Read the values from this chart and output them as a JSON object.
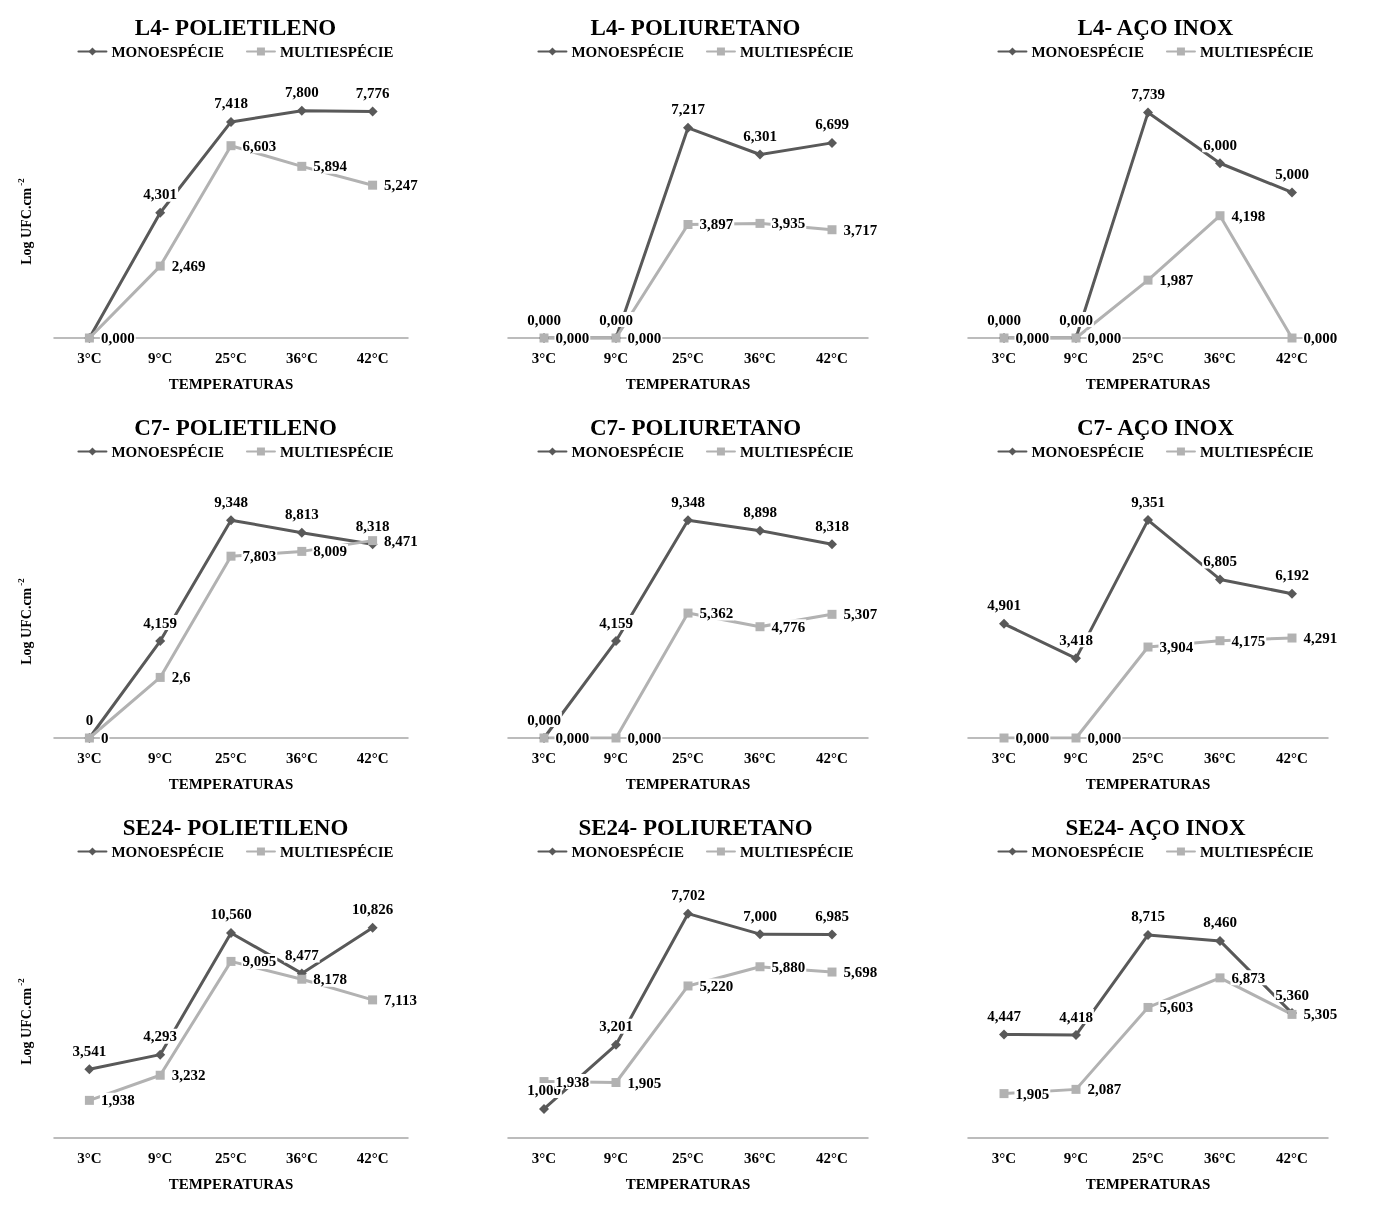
{
  "chart_data": [
    {
      "type": "line",
      "title": "L4- POLIETILENO",
      "xlabel": "TEMPERATURAS",
      "ylabel": "Log UFC.cm$^{-2}$",
      "categories": [
        "3°C",
        "9°C",
        "25°C",
        "36°C",
        "42°C"
      ],
      "legend": "top",
      "grid": false,
      "series": [
        {
          "name": "MONOESPÉCIE",
          "color": "#595959",
          "marker": "diamond",
          "values": [
            0,
            4.301,
            7.418,
            7.8,
            7.776
          ],
          "value_labels": [
            null,
            "4,301",
            "7,418",
            "7,800",
            "7,776"
          ]
        },
        {
          "name": "MULTIESPÉCIE",
          "color": "#b2b2b2",
          "marker": "square",
          "values": [
            0,
            2.469,
            6.603,
            5.894,
            5.247
          ],
          "value_labels": [
            "0,000",
            "2,469",
            "6,603",
            "5,894",
            "5,247"
          ]
        }
      ]
    },
    {
      "type": "line",
      "title": "L4- POLIURETANO",
      "xlabel": "TEMPERATURAS",
      "categories": [
        "3°C",
        "9°C",
        "25°C",
        "36°C",
        "42°C"
      ],
      "legend": "top",
      "grid": false,
      "series": [
        {
          "name": "MONOESPÉCIE",
          "color": "#595959",
          "marker": "diamond",
          "values": [
            0,
            0,
            7.217,
            6.301,
            6.699
          ],
          "value_labels": [
            "0,000",
            "0,000",
            "7,217",
            "6,301",
            "6,699"
          ]
        },
        {
          "name": "MULTIESPÉCIE",
          "color": "#b2b2b2",
          "marker": "square",
          "values": [
            0,
            0,
            3.897,
            3.935,
            3.717
          ],
          "value_labels": [
            "0,000",
            "0,000",
            "3,897",
            "3,935",
            "3,717"
          ]
        }
      ]
    },
    {
      "type": "line",
      "title": "L4- AÇO INOX",
      "xlabel": "TEMPERATURAS",
      "categories": [
        "3°C",
        "9°C",
        "25°C",
        "36°C",
        "42°C"
      ],
      "legend": "top",
      "grid": false,
      "series": [
        {
          "name": "MONOESPÉCIE",
          "color": "#595959",
          "marker": "diamond",
          "values": [
            0,
            0,
            7.739,
            6.0,
            5.0
          ],
          "value_labels": [
            "0,000",
            "0,000",
            "7,739",
            "6,000",
            "5,000"
          ]
        },
        {
          "name": "MULTIESPÉCIE",
          "color": "#b2b2b2",
          "marker": "square",
          "values": [
            0,
            0,
            1.987,
            4.198,
            0
          ],
          "value_labels": [
            "0,000",
            "0,000",
            "1,987",
            "4,198",
            "0,000"
          ]
        }
      ]
    },
    {
      "type": "line",
      "title": "C7- POLIETILENO",
      "xlabel": "TEMPERATURAS",
      "ylabel": "Log UFC.cm$^{-2}$",
      "categories": [
        "3°C",
        "9°C",
        "25°C",
        "36°C",
        "42°C"
      ],
      "legend": "top",
      "grid": false,
      "series": [
        {
          "name": "MONOESPÉCIE",
          "color": "#595959",
          "marker": "diamond",
          "values": [
            0,
            4.159,
            9.348,
            8.813,
            8.318
          ],
          "value_labels": [
            "0",
            "4,159",
            "9,348",
            "8,813",
            "8,318"
          ]
        },
        {
          "name": "MULTIESPÉCIE",
          "color": "#b2b2b2",
          "marker": "square",
          "values": [
            0,
            2.6,
            7.803,
            8.009,
            8.471
          ],
          "value_labels": [
            "0",
            "2,6",
            "7,803",
            "8,009",
            "8,471"
          ]
        }
      ]
    },
    {
      "type": "line",
      "title": "C7- POLIURETANO",
      "xlabel": "TEMPERATURAS",
      "categories": [
        "3°C",
        "9°C",
        "25°C",
        "36°C",
        "42°C"
      ],
      "legend": "top",
      "grid": false,
      "series": [
        {
          "name": "MONOESPÉCIE",
          "color": "#595959",
          "marker": "diamond",
          "values": [
            0,
            4.159,
            9.348,
            8.898,
            8.318
          ],
          "value_labels": [
            "0,000",
            "4,159",
            "9,348",
            "8,898",
            "8,318"
          ]
        },
        {
          "name": "MULTIESPÉCIE",
          "color": "#b2b2b2",
          "marker": "square",
          "values": [
            0,
            0,
            5.362,
            4.776,
            5.307
          ],
          "value_labels": [
            "0,000",
            "0,000",
            "5,362",
            "4,776",
            "5,307"
          ]
        }
      ]
    },
    {
      "type": "line",
      "title": "C7- AÇO INOX",
      "xlabel": "TEMPERATURAS",
      "categories": [
        "3°C",
        "9°C",
        "25°C",
        "36°C",
        "42°C"
      ],
      "legend": "top",
      "grid": false,
      "series": [
        {
          "name": "MONOESPÉCIE",
          "color": "#595959",
          "marker": "diamond",
          "values": [
            4.901,
            3.418,
            9.351,
            6.805,
            6.192
          ],
          "value_labels": [
            "4,901",
            "3,418",
            "9,351",
            "6,805",
            "6,192"
          ]
        },
        {
          "name": "MULTIESPÉCIE",
          "color": "#b2b2b2",
          "marker": "square",
          "values": [
            0,
            0,
            3.904,
            4.175,
            4.291
          ],
          "value_labels": [
            "0,000",
            "0,000",
            "3,904",
            "4,175",
            "4,291"
          ]
        }
      ]
    },
    {
      "type": "line",
      "title": "SE24- POLIETILENO",
      "xlabel": "TEMPERATURAS",
      "ylabel": "Log UFC.cm$^{-2}$",
      "categories": [
        "3°C",
        "9°C",
        "25°C",
        "36°C",
        "42°C"
      ],
      "legend": "top",
      "grid": false,
      "series": [
        {
          "name": "MONOESPÉCIE",
          "color": "#595959",
          "marker": "diamond",
          "values": [
            3.541,
            4.293,
            10.56,
            8.477,
            10.826
          ],
          "value_labels": [
            "3,541",
            "4,293",
            "10,560",
            "8,477",
            "10,826"
          ]
        },
        {
          "name": "MULTIESPÉCIE",
          "color": "#b2b2b2",
          "marker": "square",
          "values": [
            1.938,
            3.232,
            9.095,
            8.178,
            7.113
          ],
          "value_labels": [
            "1,938",
            "3,232",
            "9,095",
            "8,178",
            "7,113"
          ]
        }
      ]
    },
    {
      "type": "line",
      "title": "SE24- POLIURETANO",
      "xlabel": "TEMPERATURAS",
      "categories": [
        "3°C",
        "9°C",
        "25°C",
        "36°C",
        "42°C"
      ],
      "legend": "top",
      "grid": false,
      "series": [
        {
          "name": "MONOESPÉCIE",
          "color": "#595959",
          "marker": "diamond",
          "values": [
            1.0,
            3.201,
            7.702,
            7.0,
            6.985
          ],
          "value_labels": [
            "1,000",
            "3,201",
            "7,702",
            "7,000",
            "6,985"
          ]
        },
        {
          "name": "MULTIESPÉCIE",
          "color": "#b2b2b2",
          "marker": "square",
          "values": [
            1.938,
            1.905,
            5.22,
            5.88,
            5.698
          ],
          "value_labels": [
            "1,938",
            "1,905",
            "5,220",
            "5,880",
            "5,698"
          ]
        }
      ]
    },
    {
      "type": "line",
      "title": "SE24- AÇO INOX",
      "xlabel": "TEMPERATURAS",
      "categories": [
        "3°C",
        "9°C",
        "25°C",
        "36°C",
        "42°C"
      ],
      "legend": "top",
      "grid": false,
      "series": [
        {
          "name": "MONOESPÉCIE",
          "color": "#595959",
          "marker": "diamond",
          "values": [
            4.447,
            4.418,
            8.715,
            8.46,
            5.36
          ],
          "value_labels": [
            "4,447",
            "4,418",
            "8,715",
            "8,460",
            "5,360"
          ]
        },
        {
          "name": "MULTIESPÉCIE",
          "color": "#b2b2b2",
          "marker": "square",
          "values": [
            1.905,
            2.087,
            5.603,
            6.873,
            5.305
          ],
          "value_labels": [
            "1,905",
            "2,087",
            "5,603",
            "6,873",
            "5,305"
          ]
        }
      ]
    }
  ]
}
